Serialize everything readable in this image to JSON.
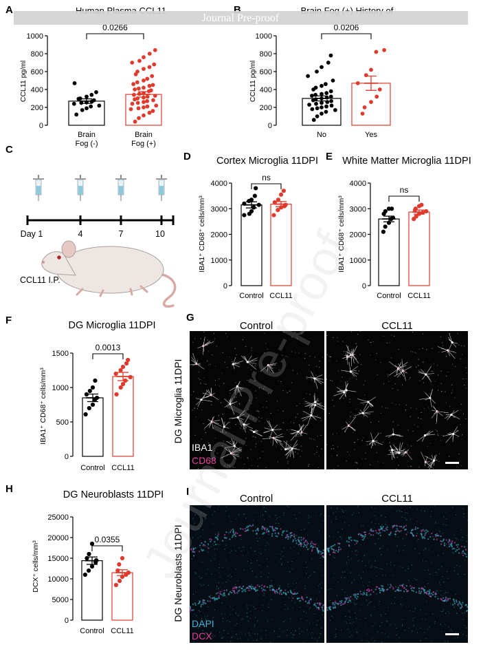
{
  "watermark": {
    "banner": "Journal Pre-proof",
    "diagonal": "Journal Pre-proof"
  },
  "colors": {
    "control": "#000000",
    "treated": "#e03a2c",
    "microglia_bg": "#050505",
    "dg_bg": "#060d14"
  },
  "panels": {
    "A": {
      "label": "A",
      "title": "Human Plasma CCL11",
      "ylabel": "CCL11 pg/ml",
      "sig": "0.0266",
      "ticks": [
        "0",
        "200",
        "400",
        "600",
        "800",
        "1000"
      ],
      "cat1": [
        "Brain",
        "Fog (-)"
      ],
      "cat2": [
        "Brain",
        "Fog (+)"
      ]
    },
    "B": {
      "label": "B",
      "title": "Brain Fog (+) History of",
      "ylabel": "CCL11 pg/ml",
      "sig": "0.0206",
      "ticks": [
        "0",
        "200",
        "400",
        "600",
        "800",
        "1000"
      ],
      "cat1": "No",
      "cat2": "Yes"
    },
    "C": {
      "label": "C",
      "days": [
        "Day 1",
        "4",
        "7",
        "10"
      ],
      "injection": "CCL11 I.P."
    },
    "D": {
      "label": "D",
      "title": "Cortex Microglia 11DPI",
      "ylabel": "IBA1⁺ CD68⁺ cells/mm³",
      "sig": "ns",
      "ticks": [
        "0",
        "1000",
        "2000",
        "3000",
        "4000"
      ],
      "cat1": "Control",
      "cat2": "CCL11"
    },
    "E": {
      "label": "E",
      "title": "White Matter Microglia 11DPI",
      "ylabel": "IBA1⁺ CD68⁺ cells/mm³",
      "sig": "ns",
      "ticks": [
        "0",
        "1000",
        "2000",
        "3000",
        "4000"
      ],
      "cat1": "Control",
      "cat2": "CCL11"
    },
    "F": {
      "label": "F",
      "title": "DG Microglia 11DPI",
      "ylabel": "IBA1⁺ CD68⁺ cells/mm³",
      "sig": "0.0013",
      "ticks": [
        "0",
        "500",
        "1000",
        "1500"
      ],
      "cat1": "Control",
      "cat2": "CCL11"
    },
    "G": {
      "label": "G",
      "side_label": "DG Microglia 11DPI",
      "col1": "Control",
      "col2": "CCL11",
      "stain1": "IBA1",
      "stain2": "CD68"
    },
    "H": {
      "label": "H",
      "title": "DG Neuroblasts 11DPI",
      "ylabel": "DCX⁺ cells/mm³",
      "sig": "0.0355",
      "ticks": [
        "0",
        "5000",
        "10000",
        "15000",
        "20000",
        "25000"
      ],
      "cat1": "Control",
      "cat2": "CCL11"
    },
    "I": {
      "label": "I",
      "side_label": "DG Neuroblasts 11DPI",
      "col1": "Control",
      "col2": "CCL11",
      "stain1": "DAPI",
      "stain2": "DCX"
    }
  },
  "chart_data": [
    {
      "id": "A",
      "type": "bar",
      "title": "Human Plasma CCL11",
      "ylabel": "CCL11 pg/ml",
      "ylim": [
        0,
        1000
      ],
      "categories": [
        "Brain Fog (-)",
        "Brain Fog (+)"
      ],
      "means": [
        270,
        345
      ],
      "sem": [
        25,
        30
      ],
      "significance": "0.0266",
      "points": [
        [
          120,
          170,
          190,
          210,
          220,
          240,
          250,
          255,
          265,
          280,
          295,
          300,
          320,
          340,
          370,
          470
        ],
        [
          40,
          80,
          110,
          140,
          160,
          180,
          190,
          200,
          210,
          220,
          240,
          250,
          260,
          270,
          280,
          290,
          300,
          310,
          320,
          330,
          340,
          350,
          360,
          380,
          390,
          400,
          410,
          420,
          440,
          450,
          460,
          480,
          500,
          520,
          550,
          570,
          600,
          630,
          650,
          680,
          700,
          720,
          760,
          800,
          840
        ]
      ]
    },
    {
      "id": "B",
      "type": "bar",
      "title": "Brain Fog (+) History of",
      "ylabel": "CCL11 pg/ml",
      "ylim": [
        0,
        1000
      ],
      "categories": [
        "No",
        "Yes"
      ],
      "means": [
        300,
        470
      ],
      "sem": [
        28,
        80
      ],
      "significance": "0.0206",
      "points": [
        [
          60,
          100,
          130,
          150,
          170,
          180,
          190,
          200,
          210,
          220,
          230,
          240,
          250,
          260,
          270,
          280,
          290,
          300,
          310,
          320,
          330,
          340,
          350,
          360,
          380,
          400,
          420,
          440,
          460,
          500,
          550,
          600,
          650,
          700,
          780
        ],
        [
          130,
          200,
          260,
          320,
          400,
          470,
          560,
          620,
          820,
          840
        ]
      ]
    },
    {
      "id": "D",
      "type": "bar",
      "title": "Cortex Microglia 11DPI",
      "ylabel": "IBA1+ CD68+ cells/mm3",
      "ylim": [
        0,
        4000
      ],
      "categories": [
        "Control",
        "CCL11"
      ],
      "means": [
        3150,
        3180
      ],
      "sem": [
        120,
        100
      ],
      "significance": "ns",
      "points": [
        [
          2750,
          2800,
          2900,
          3050,
          3150,
          3200,
          3300,
          3350,
          3500,
          3800
        ],
        [
          2750,
          2950,
          3050,
          3100,
          3150,
          3250,
          3350,
          3550,
          3700
        ]
      ]
    },
    {
      "id": "E",
      "type": "bar",
      "title": "White Matter Microglia 11DPI",
      "ylabel": "IBA1+ CD68+ cells/mm3",
      "ylim": [
        0,
        4000
      ],
      "categories": [
        "Control",
        "CCL11"
      ],
      "means": [
        2600,
        2870
      ],
      "sem": [
        110,
        80
      ],
      "significance": "ns",
      "points": [
        [
          2100,
          2300,
          2450,
          2600,
          2650,
          2800,
          2900,
          3000,
          3000
        ],
        [
          2600,
          2700,
          2800,
          2850,
          2900,
          2950,
          3000,
          3100,
          3150
        ]
      ]
    },
    {
      "id": "F",
      "type": "bar",
      "title": "DG Microglia 11DPI",
      "ylabel": "IBA1+ CD68+ cells/mm3",
      "ylim": [
        0,
        1500
      ],
      "categories": [
        "Control",
        "CCL11"
      ],
      "means": [
        850,
        1160
      ],
      "sem": [
        55,
        60
      ],
      "significance": "0.0013",
      "points": [
        [
          610,
          700,
          750,
          820,
          850,
          900,
          950,
          1000,
          1100
        ],
        [
          900,
          1000,
          1050,
          1100,
          1150,
          1200,
          1250,
          1300,
          1350,
          1400
        ]
      ]
    },
    {
      "id": "H",
      "type": "bar",
      "title": "DG Neuroblasts 11DPI",
      "ylabel": "DCX+ cells/mm3",
      "ylim": [
        0,
        25000
      ],
      "categories": [
        "Control",
        "CCL11"
      ],
      "means": [
        14400,
        11500
      ],
      "sem": [
        900,
        700
      ],
      "significance": "0.0355",
      "points": [
        [
          11000,
          12000,
          13000,
          14000,
          14500,
          15000,
          16000,
          18500
        ],
        [
          8500,
          9500,
          10500,
          11000,
          11500,
          12000,
          13500,
          15000
        ]
      ]
    }
  ]
}
